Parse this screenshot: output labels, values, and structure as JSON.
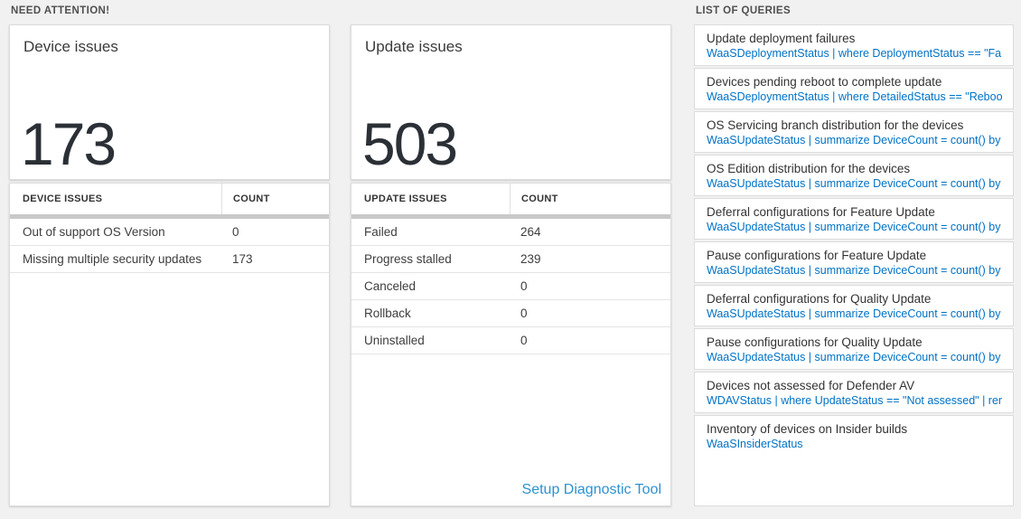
{
  "sections": {
    "need_attention_label": "NEED ATTENTION!",
    "list_of_queries_label": "LIST OF QUERIES"
  },
  "colors": {
    "page_bg": "#f1f1f1",
    "accent_blue": "#0072c6",
    "setup_link_blue": "#2d91d0",
    "big_number_text": "#2b3036",
    "scroll_strip": "#c9c9c9"
  },
  "device_panel": {
    "title": "Device issues",
    "big_number": "173",
    "table": {
      "columns": {
        "label": "DEVICE ISSUES",
        "count": "COUNT"
      },
      "rows": [
        {
          "label": "Out of support OS Version",
          "count": "0"
        },
        {
          "label": "Missing multiple security updates",
          "count": "173"
        }
      ]
    }
  },
  "update_panel": {
    "title": "Update issues",
    "big_number": "503",
    "table": {
      "columns": {
        "label": "UPDATE ISSUES",
        "count": "COUNT"
      },
      "rows": [
        {
          "label": "Failed",
          "count": "264"
        },
        {
          "label": "Progress stalled",
          "count": "239"
        },
        {
          "label": "Canceled",
          "count": "0"
        },
        {
          "label": "Rollback",
          "count": "0"
        },
        {
          "label": "Uninstalled",
          "count": "0"
        }
      ]
    },
    "setup_link_label": "Setup Diagnostic Tool"
  },
  "queries": {
    "items": [
      {
        "title": "Update deployment failures",
        "query": "WaaSDeploymentStatus | where DeploymentStatus == \"Failed\" |..."
      },
      {
        "title": "Devices pending reboot to complete update",
        "query": "WaaSDeploymentStatus | where DetailedStatus == \"Reboot pend..."
      },
      {
        "title": "OS Servicing branch distribution for the devices",
        "query": "WaaSUpdateStatus | summarize DeviceCount = count() by OSSer..."
      },
      {
        "title": "OS Edition distribution for the devices",
        "query": "WaaSUpdateStatus | summarize DeviceCount = count() by OSEdit..."
      },
      {
        "title": "Deferral configurations for Feature Update",
        "query": "WaaSUpdateStatus | summarize DeviceCount = count() by Featur..."
      },
      {
        "title": "Pause configurations for Feature Update",
        "query": "WaaSUpdateStatus | summarize DeviceCount = count() by Featur..."
      },
      {
        "title": "Deferral configurations for Quality Update",
        "query": "WaaSUpdateStatus | summarize DeviceCount = count() by Qualit..."
      },
      {
        "title": "Pause configurations for Quality Update",
        "query": "WaaSUpdateStatus | summarize DeviceCount = count() by Qualit..."
      },
      {
        "title": "Devices not assessed for Defender AV",
        "query": "WDAVStatus | where UpdateStatus == \"Not assessed\" | render ta..."
      },
      {
        "title": "Inventory of devices on Insider builds",
        "query": "WaaSInsiderStatus"
      }
    ]
  }
}
